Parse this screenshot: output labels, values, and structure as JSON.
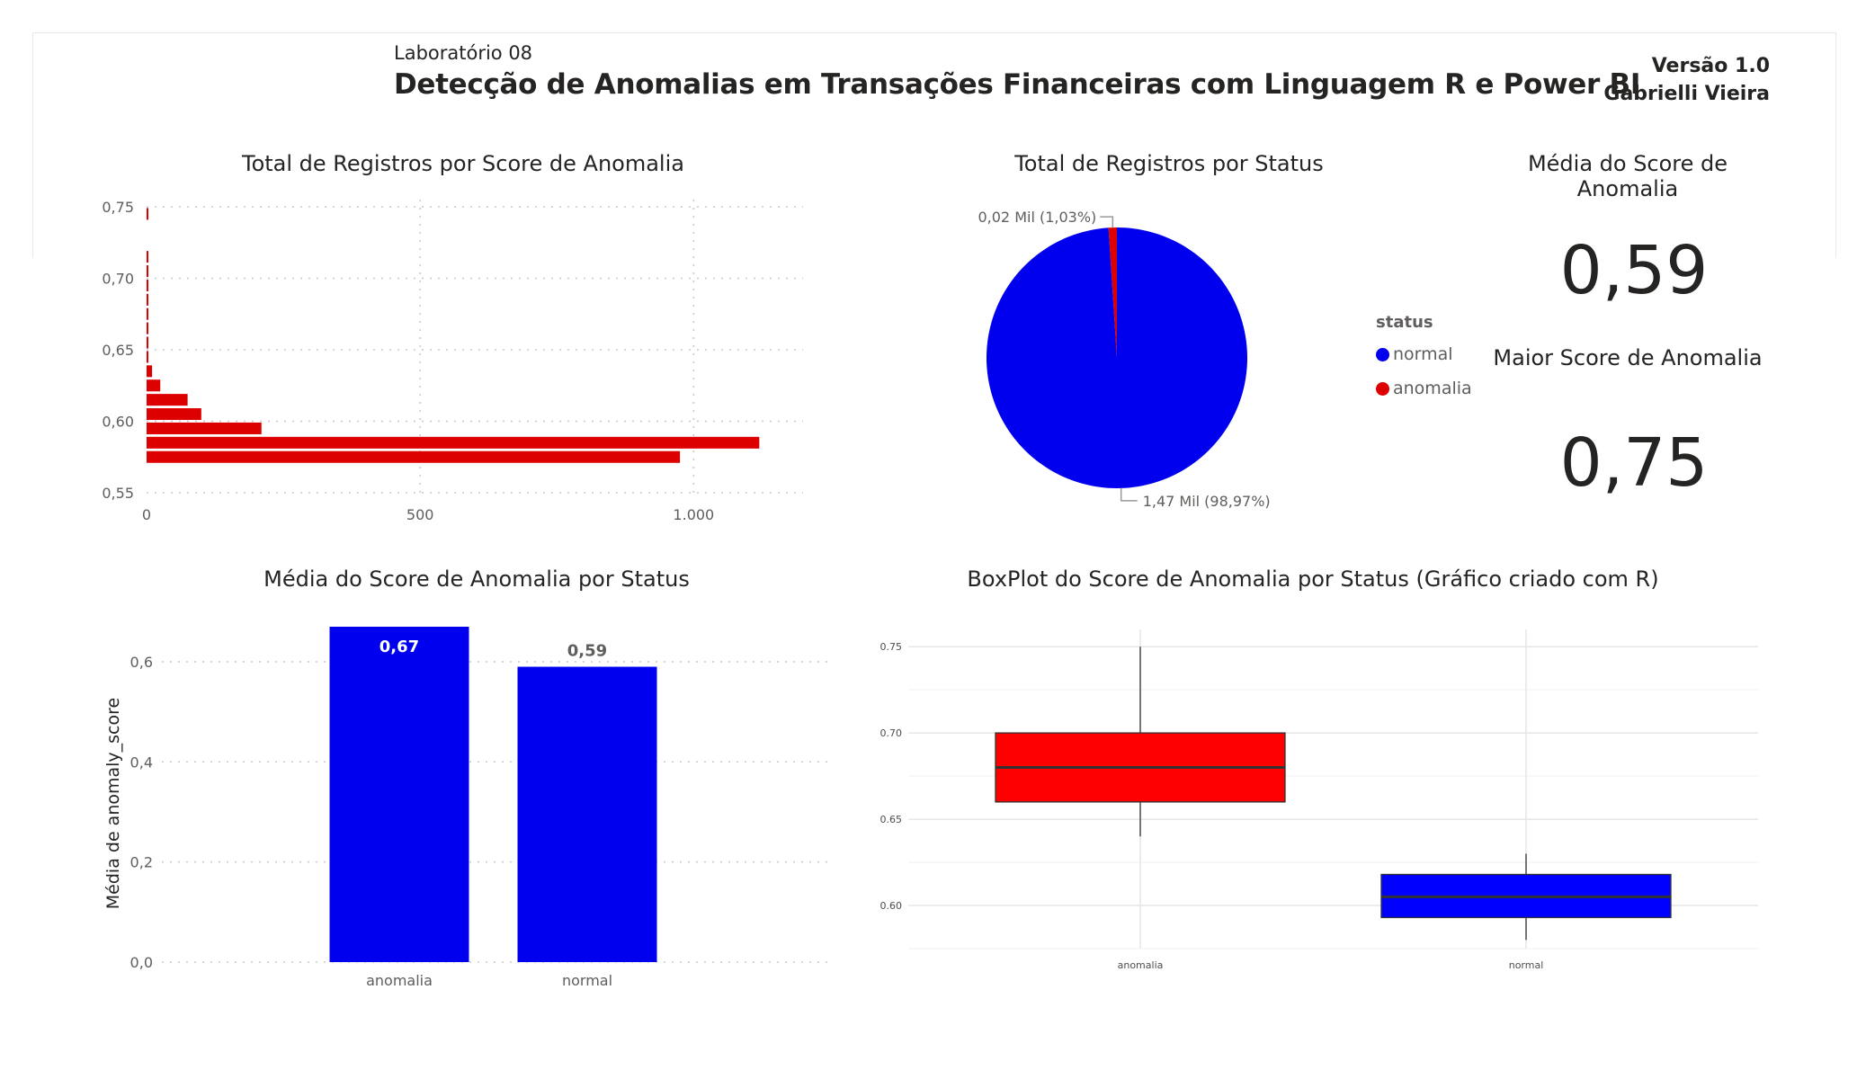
{
  "header": {
    "lab": "Laboratório 08",
    "title": "Detecção de Anomalias em Transações Financeiras com Linguagem R e Power BI",
    "version": "Versão 1.0",
    "author": "Gabrielli Vieira"
  },
  "colors": {
    "red": "#dd0000",
    "blue": "#0000ee",
    "box_red": "#ff0000",
    "box_blue": "#0000ff"
  },
  "chart_data": [
    {
      "type": "bar",
      "orientation": "horizontal",
      "title": "Total de Registros por Score de Anomalia",
      "xticks": [
        "0",
        "500",
        "1.000"
      ],
      "xtick_values": [
        0,
        500,
        1000
      ],
      "xlim": [
        0,
        1200
      ],
      "yticks": [
        "0,55",
        "0,60",
        "0,65",
        "0,70",
        "0,75"
      ],
      "ytick_values": [
        0.55,
        0.6,
        0.65,
        0.7,
        0.75
      ],
      "ylim": [
        0.55,
        0.755
      ],
      "bin_width": 0.01,
      "categories": [
        0.575,
        0.585,
        0.595,
        0.605,
        0.615,
        0.625,
        0.635,
        0.645,
        0.655,
        0.665,
        0.675,
        0.685,
        0.695,
        0.705,
        0.715,
        0.745
      ],
      "values": [
        975,
        1120,
        210,
        100,
        75,
        25,
        10,
        3,
        3,
        3,
        3,
        3,
        3,
        3,
        3,
        3
      ]
    },
    {
      "type": "pie",
      "title": "Total de Registros por Status",
      "legend_title": "status",
      "labels": [
        "normal",
        "anomalia"
      ],
      "values": [
        1.47,
        0.02
      ],
      "percentages": [
        98.97,
        1.03
      ],
      "data_labels": [
        "1,47 Mil (98,97%)",
        "0,02 Mil (1,03%)"
      ]
    },
    {
      "type": "bar",
      "title": "Média do Score de Anomalia por Status",
      "ylabel": "Média de anomaly_score",
      "categories": [
        "anomalia",
        "normal"
      ],
      "values": [
        0.67,
        0.59
      ],
      "data_labels": [
        "0,67",
        "0,59"
      ],
      "yticks": [
        "0,0",
        "0,2",
        "0,4",
        "0,6"
      ],
      "ytick_values": [
        0,
        0.2,
        0.4,
        0.6
      ],
      "ylim": [
        0,
        0.67
      ]
    },
    {
      "type": "box",
      "title": "BoxPlot do Score de Anomalia por Status (Gráfico criado com R)",
      "categories": [
        "anomalia",
        "normal"
      ],
      "boxes": [
        {
          "min": 0.64,
          "q1": 0.66,
          "median": 0.68,
          "q3": 0.7,
          "max": 0.75
        },
        {
          "min": 0.58,
          "q1": 0.593,
          "median": 0.605,
          "q3": 0.618,
          "max": 0.63
        }
      ],
      "yticks": [
        "0.60",
        "0.65",
        "0.70",
        "0.75"
      ],
      "ytick_values": [
        0.6,
        0.65,
        0.7,
        0.75
      ],
      "ylim": [
        0.575,
        0.76
      ]
    }
  ],
  "kpis": [
    {
      "title": "Média do Score de Anomalia",
      "value": "0,59"
    },
    {
      "title": "Maior Score de Anomalia",
      "value": "0,75"
    }
  ]
}
